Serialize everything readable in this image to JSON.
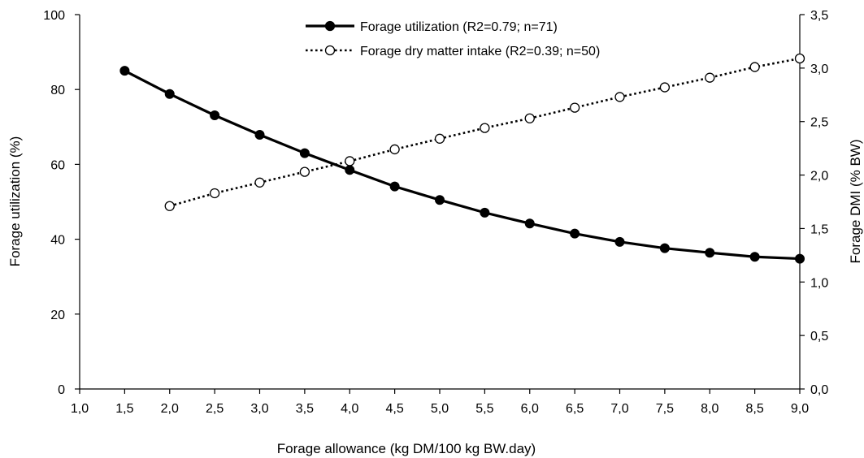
{
  "chart_data": {
    "type": "line",
    "xlabel": "Forage allowance (kg DM/100 kg BW.day)",
    "ylabel_left": "Forage utilization (%)",
    "ylabel_right": "Forage DMI (% BW)",
    "xlim": [
      1.0,
      9.0
    ],
    "ylim_left": [
      0,
      100
    ],
    "ylim_right": [
      0.0,
      3.5
    ],
    "x_ticks": [
      "1,0",
      "1,5",
      "2,0",
      "2,5",
      "3,0",
      "3,5",
      "4,0",
      "4,5",
      "5,0",
      "5,5",
      "6,0",
      "6,5",
      "7,0",
      "7,5",
      "8,0",
      "8,5",
      "9,0"
    ],
    "y_left_ticks": [
      "0",
      "20",
      "40",
      "60",
      "80",
      "100"
    ],
    "y_right_ticks": [
      "0,0",
      "0,5",
      "1,0",
      "1,5",
      "2,0",
      "2,5",
      "3,0",
      "3,5"
    ],
    "grid": false,
    "legend_position": "top-center",
    "series": [
      {
        "name": "Forage utilization (R2=0.79; n=71)",
        "axis": "left",
        "line_style": "solid",
        "marker": "filled-circle",
        "color": "#000000",
        "x": [
          1.5,
          2.0,
          2.5,
          3.0,
          3.5,
          4.0,
          4.5,
          5.0,
          5.5,
          6.0,
          6.5,
          7.0,
          7.5,
          8.0,
          8.5,
          9.0
        ],
        "y": [
          85.0,
          78.8,
          73.1,
          67.9,
          63.0,
          58.5,
          54.1,
          50.5,
          47.1,
          44.2,
          41.5,
          39.3,
          37.6,
          36.4,
          35.3,
          34.8
        ]
      },
      {
        "name": "Forage dry matter intake (R2=0.39; n=50)",
        "axis": "right",
        "line_style": "dotted",
        "marker": "open-circle",
        "color": "#000000",
        "x": [
          2.0,
          2.5,
          3.0,
          3.5,
          4.0,
          4.5,
          5.0,
          5.5,
          6.0,
          6.5,
          7.0,
          7.5,
          8.0,
          8.5,
          9.0
        ],
        "y": [
          1.71,
          1.83,
          1.93,
          2.03,
          2.13,
          2.24,
          2.34,
          2.44,
          2.53,
          2.63,
          2.73,
          2.82,
          2.91,
          3.01,
          3.09
        ]
      }
    ]
  }
}
